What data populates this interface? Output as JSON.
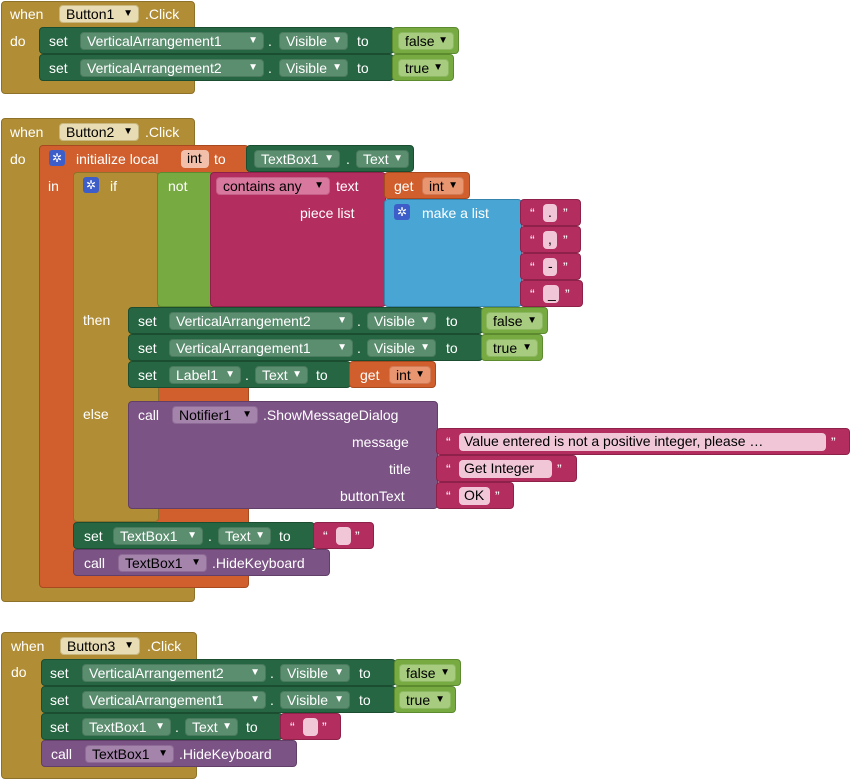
{
  "kw": {
    "when": "when",
    "do": "do",
    "click": ".Click",
    "set": "set",
    "to": "to",
    "dot": ".",
    "in": "in",
    "if": "if",
    "then": "then",
    "else": "else",
    "not": "not",
    "call": "call",
    "get": "get",
    "text": "text",
    "piece_list": "piece list",
    "make_a_list": "make a list",
    "initialize_local": "initialize local",
    "contains_any": "contains any",
    "open_q": "“",
    "close_q": "”",
    "show_message_dialog": ".ShowMessageDialog",
    "hide_keyboard": ".HideKeyboard",
    "message": "message",
    "title": "title",
    "button_text": "buttonText"
  },
  "event1": {
    "component": "Button1",
    "rows": [
      {
        "component": "VerticalArrangement1",
        "property": "Visible",
        "value": "false"
      },
      {
        "component": "VerticalArrangement2",
        "property": "Visible",
        "value": "true"
      }
    ]
  },
  "event2": {
    "component": "Button2",
    "local_var": "int",
    "init_component": "TextBox1",
    "init_property": "Text",
    "get_var": "int",
    "pieces": [
      ".",
      ",",
      "-",
      "_"
    ],
    "then_rows": [
      {
        "component": "VerticalArrangement2",
        "property": "Visible",
        "value": "false"
      },
      {
        "component": "VerticalArrangement1",
        "property": "Visible",
        "value": "true"
      }
    ],
    "then_label_component": "Label1",
    "then_label_property": "Text",
    "then_get_var": "int",
    "notifier": "Notifier1",
    "message": "Value entered is not a positive integer, please …",
    "dialog_title": "Get Integer",
    "button_text": "OK",
    "tb_component": "TextBox1",
    "tb_property": "Text",
    "hide_component": "TextBox1"
  },
  "event3": {
    "component": "Button3",
    "rows": [
      {
        "component": "VerticalArrangement2",
        "property": "Visible",
        "value": "false"
      },
      {
        "component": "VerticalArrangement1",
        "property": "Visible",
        "value": "true"
      }
    ],
    "tb_component": "TextBox1",
    "tb_property": "Text",
    "hide_component": "TextBox1"
  },
  "colors": {
    "event": "#b18e35",
    "setter": "#266643",
    "logic": "#77ab41",
    "local": "#d05f2d",
    "text": "#b32d5e",
    "list": "#49a6d4",
    "call": "#7c5385"
  },
  "icons": [
    "gear-icon",
    "dropdown-arrow-icon"
  ]
}
